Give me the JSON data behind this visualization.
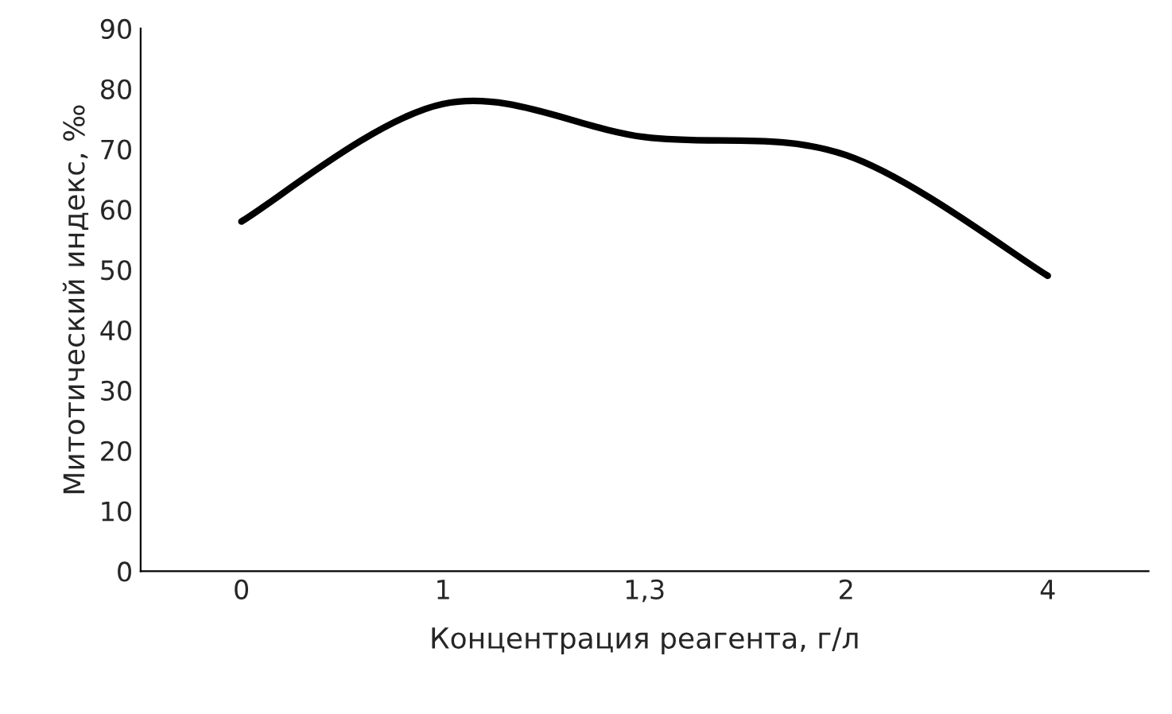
{
  "chart_data": {
    "type": "line",
    "xlabel": "Концентрация реагента, г/л",
    "ylabel": "Митотический индекс, ‰",
    "categories": [
      "0",
      "1",
      "1,3",
      "2",
      "4"
    ],
    "series": [
      {
        "color": "#000000",
        "values": [
          58,
          77.5,
          72,
          69,
          49
        ]
      }
    ],
    "ylim": [
      0,
      90
    ],
    "yticks": [
      0,
      10,
      20,
      30,
      40,
      50,
      60,
      70,
      80,
      90
    ],
    "grid": false,
    "legend": false,
    "marker": "none",
    "line_style": "solid"
  }
}
